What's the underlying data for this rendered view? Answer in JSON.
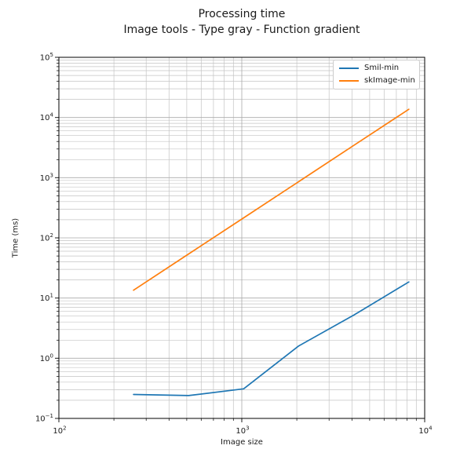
{
  "chart_data": {
    "type": "line",
    "title": "Processing time",
    "subtitle": "Image tools - Type gray - Function gradient",
    "xlabel": "Image size",
    "ylabel": "Time (ms)",
    "xscale": "log",
    "yscale": "log",
    "xlim": [
      100,
      10000
    ],
    "ylim": [
      0.1,
      100000
    ],
    "grid": "both",
    "legend_position": "upper right",
    "x": [
      256,
      512,
      1024,
      2048,
      4096,
      8192
    ],
    "series": [
      {
        "name": "Smil-min",
        "color": "#1f77b4",
        "values": [
          0.25,
          0.24,
          0.31,
          1.6,
          5.2,
          18.5
        ]
      },
      {
        "name": "skImage-min",
        "color": "#ff7f0e",
        "values": [
          13.5,
          54,
          215,
          860,
          3440,
          13700
        ]
      }
    ],
    "x_tick_exponents": [
      "2",
      "3",
      "4"
    ],
    "y_tick_exponents": [
      "−1",
      "0",
      "1",
      "2",
      "3",
      "4",
      "5"
    ],
    "colors": {
      "grid_major": "#aaaaaa",
      "grid_minor": "#c4c4c4",
      "spine": "#000000",
      "text": "#1a1a1a",
      "background": "#ffffff"
    }
  }
}
